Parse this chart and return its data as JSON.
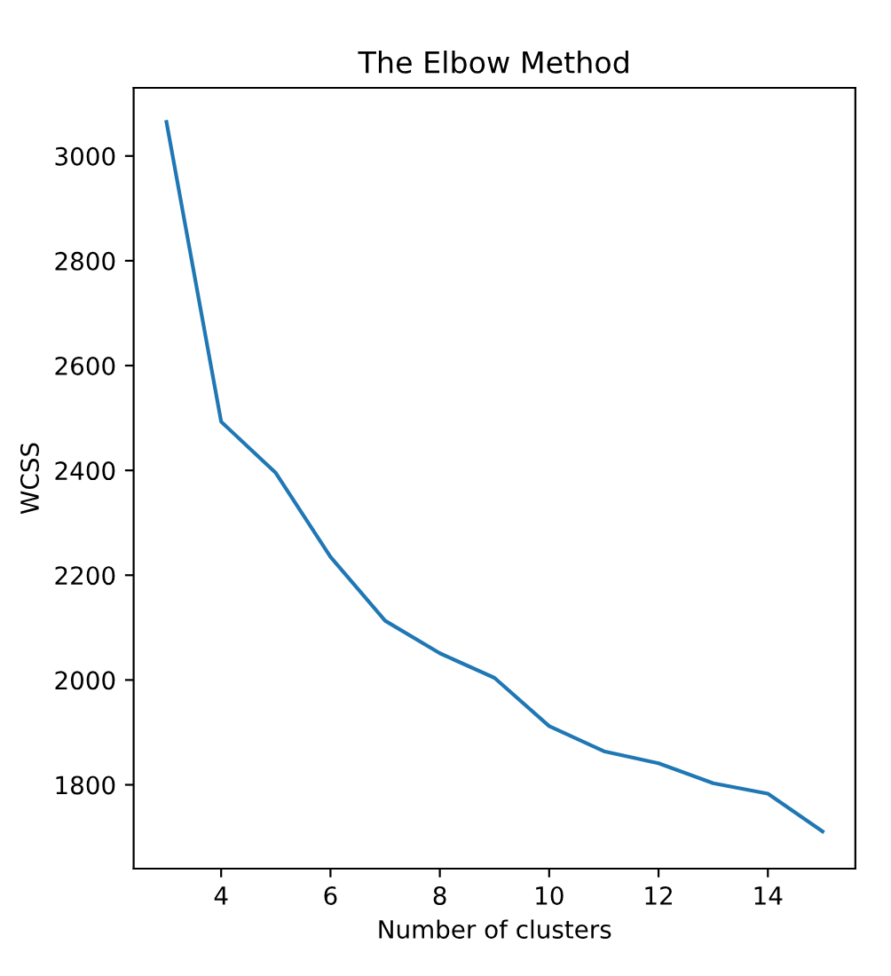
{
  "chart_data": {
    "type": "line",
    "title": "The Elbow Method",
    "xlabel": "Number of clusters",
    "ylabel": "WCSS",
    "x": [
      3,
      4,
      5,
      6,
      7,
      8,
      9,
      10,
      11,
      12,
      13,
      14,
      15
    ],
    "series": [
      {
        "color": "#1f77b4",
        "values": [
          3065,
          2493,
          2395,
          2235,
          2113,
          2051,
          2004,
          1912,
          1864,
          1841,
          1803,
          1783,
          1711
        ]
      }
    ],
    "xlim": [
      2.4,
      15.6
    ],
    "xticks": [
      4,
      6,
      8,
      10,
      12,
      14
    ],
    "ylim": [
      1640,
      3130
    ],
    "yticks": [
      1800,
      2000,
      2200,
      2400,
      2600,
      2800,
      3000
    ],
    "grid": false,
    "legend": false
  }
}
